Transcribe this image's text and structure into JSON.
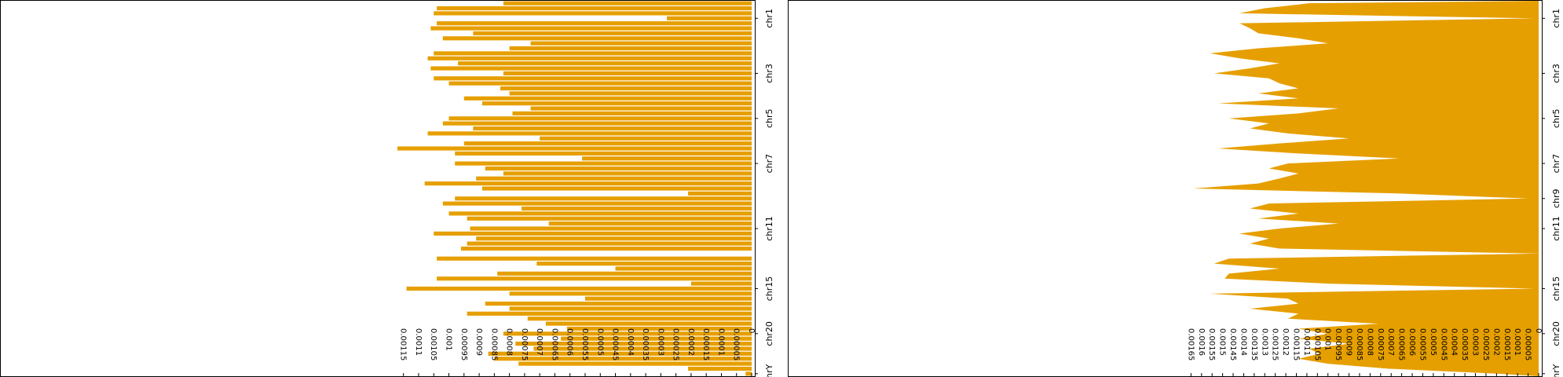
{
  "chart_data": [
    {
      "type": "barh",
      "color": "#e69f00",
      "categories": [
        null,
        null,
        null,
        "chr1",
        null,
        null,
        null,
        null,
        null,
        null,
        null,
        null,
        null,
        null,
        "chr3",
        null,
        null,
        null,
        null,
        null,
        null,
        null,
        null,
        "chr5",
        null,
        null,
        null,
        null,
        null,
        null,
        null,
        null,
        "chr7",
        null,
        null,
        null,
        null,
        null,
        null,
        null,
        null,
        null,
        null,
        null,
        null,
        "chr11",
        null,
        null,
        null,
        null,
        null,
        null,
        null,
        null,
        null,
        null,
        null,
        "chr15",
        null,
        null,
        null,
        null,
        null,
        null,
        null,
        null,
        "chr20",
        null,
        null,
        null,
        null,
        null,
        null,
        null,
        "chrY"
      ],
      "values": [
        0.00082,
        0.00104,
        0.00105,
        0.00028,
        0.00104,
        0.00106,
        0.00092,
        0.00102,
        0.00073,
        0.0008,
        0.00105,
        0.00107,
        0.00097,
        0.00106,
        0.00082,
        0.00105,
        0.001,
        0.00083,
        0.0008,
        0.00095,
        0.00089,
        0.00073,
        0.00079,
        0.001,
        0.00102,
        0.00092,
        0.00107,
        0.0007,
        0.00095,
        0.00117,
        0.00098,
        0.00056,
        0.00098,
        0.00088,
        0.00082,
        0.00091,
        0.00108,
        0.00089,
        0.00021,
        0.00098,
        0.00102,
        0.00076,
        0.001,
        0.00094,
        0.00067,
        0.00093,
        0.00105,
        0.00091,
        0.00094,
        0.00096,
        0,
        0.00104,
        0.00071,
        0.00045,
        0.00084,
        0.00104,
        0.0002,
        0.00114,
        0.0008,
        0.00055,
        0.00088,
        0.0008,
        0.00094,
        0.00074,
        0.00068,
        0.00061,
        0.00082,
        0.00063,
        0.00078,
        0.00072,
        0.00087,
        0.00085,
        0.00077,
        0.00021,
        2e-05
      ],
      "xlim": [
        0,
        0.00248
      ],
      "xticks": [
        0,
        5e-05,
        0.0001,
        0.00015,
        0.0002,
        0.00025,
        0.0003,
        0.00035,
        0.0004,
        0.00045,
        0.0005,
        0.00055,
        0.0006,
        0.00065,
        0.0007,
        0.00075,
        0.0008,
        0.00085,
        0.0009,
        0.00095,
        0.001,
        0.00105,
        0.0011,
        0.00115
      ]
    },
    {
      "type": "areah",
      "color": "#e69f00",
      "categories": [
        null,
        null,
        null,
        "chr1",
        null,
        null,
        null,
        null,
        null,
        null,
        null,
        null,
        null,
        null,
        "chr3",
        null,
        null,
        null,
        null,
        null,
        null,
        null,
        null,
        "chr5",
        null,
        null,
        null,
        null,
        null,
        null,
        null,
        null,
        "chr7",
        null,
        null,
        null,
        null,
        null,
        null,
        "chr9",
        null,
        null,
        null,
        null,
        null,
        "chr11",
        null,
        null,
        null,
        null,
        null,
        null,
        null,
        null,
        null,
        null,
        null,
        "chr15",
        null,
        null,
        null,
        null,
        null,
        null,
        null,
        null,
        "chr20",
        null,
        null,
        null,
        null,
        null,
        null,
        null,
        "chrY"
      ],
      "values": [
        0.00109,
        0.0013,
        0.00142,
        2e-05,
        0.00142,
        0.00137,
        0.00133,
        0.00114,
        0.001,
        0.00133,
        0.00156,
        0.00142,
        0.00123,
        0.00137,
        0.00154,
        0.00128,
        0.00123,
        0.00114,
        0.00133,
        0.00114,
        0.00152,
        0.00095,
        0.00114,
        0.00147,
        0.00128,
        0.00137,
        0.00119,
        0.0009,
        0.00123,
        0.00152,
        0.00114,
        0.00066,
        0.00119,
        0.00128,
        0.00114,
        0.00123,
        0.00133,
        0.00164,
        0.00066,
        5e-05,
        0.00128,
        0.00137,
        0.00114,
        0.00133,
        0.00095,
        0.00123,
        0.00142,
        0.00128,
        0.00137,
        0.00123,
        0,
        0.00147,
        0.00154,
        0.00123,
        0.00147,
        0.00149,
        0.001,
        2e-05,
        0.00156,
        0.00119,
        0.00114,
        0.00137,
        0.00114,
        0.00119,
        0.00076,
        0.00114,
        0.001,
        0.00114,
        0.0009,
        0.00109,
        0.00104,
        0.00114,
        0.001,
        0.00071,
        0.00019
      ],
      "xlim": [
        0,
        0.00356
      ],
      "xticks": [
        0,
        5e-05,
        0.0001,
        0.00015,
        0.0002,
        0.00025,
        0.0003,
        0.00035,
        0.0004,
        0.00045,
        0.0005,
        0.00055,
        0.0006,
        0.00065,
        0.0007,
        0.00075,
        0.0008,
        0.00085,
        0.0009,
        0.00095,
        0.001,
        0.00105,
        0.0011,
        0.00115,
        0.0012,
        0.00125,
        0.0013,
        0.00135,
        0.0014,
        0.00145,
        0.0015,
        0.00155,
        0.0016,
        0.00165
      ]
    }
  ]
}
